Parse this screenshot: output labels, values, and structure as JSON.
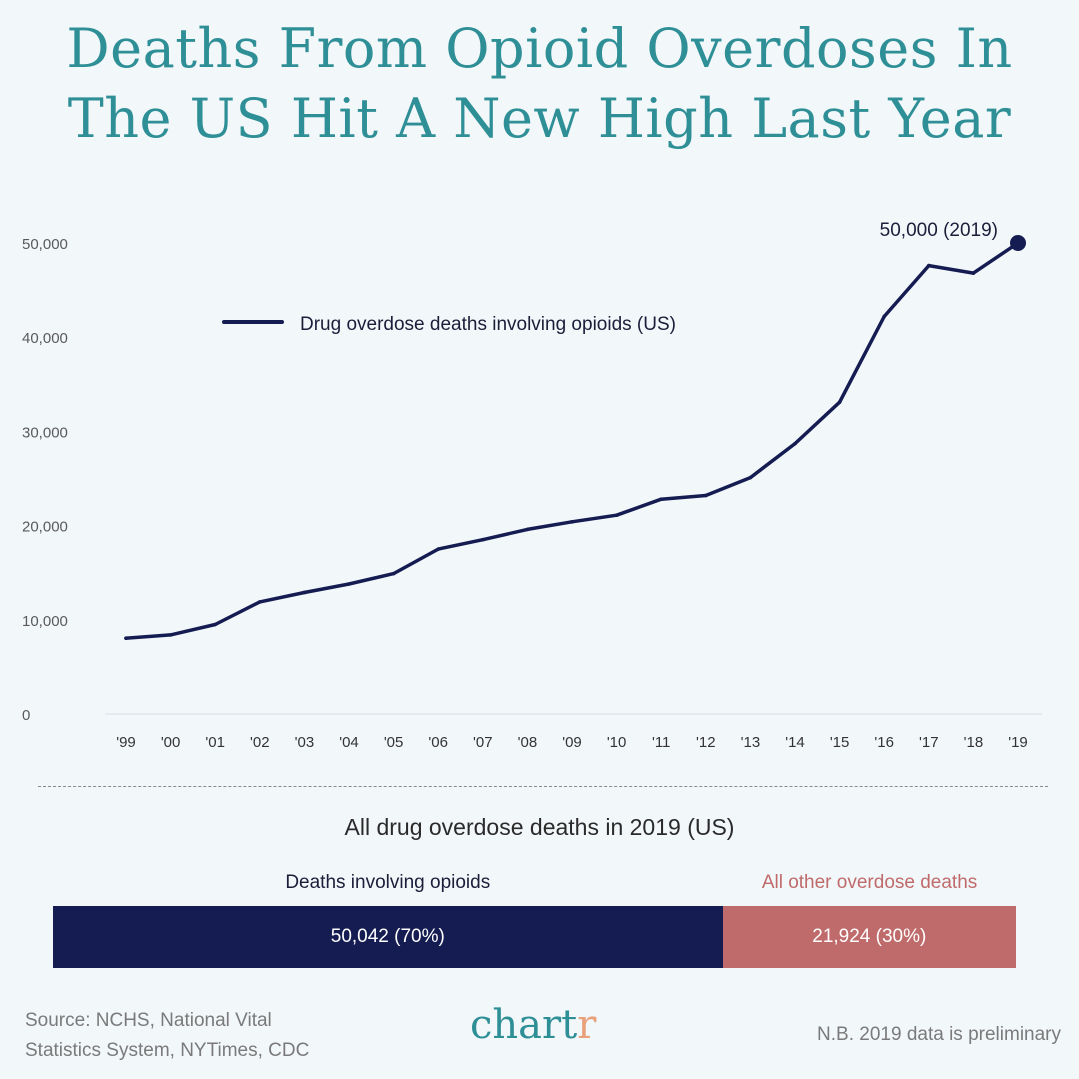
{
  "title": {
    "line1": "Deaths From Opioid Overdoses In",
    "line2": "The US Hit A New High Last Year"
  },
  "colors": {
    "title": "#2f8f96",
    "line": "#141c52",
    "opioid_bar": "#141c52",
    "other_bar": "#c06b6b",
    "other_label": "#c06b6b",
    "logo_accent": "#e8a17a"
  },
  "chart_data": {
    "type": "line",
    "title": "",
    "xlabel": "",
    "ylabel": "",
    "categories": [
      "'99",
      "'00",
      "'01",
      "'02",
      "'03",
      "'04",
      "'05",
      "'06",
      "'07",
      "'08",
      "'09",
      "'10",
      "'11",
      "'12",
      "'13",
      "'14",
      "'15",
      "'16",
      "'17",
      "'18",
      "'19"
    ],
    "series": [
      {
        "name": "Drug overdose deaths involving opioids (US)",
        "values": [
          8050,
          8400,
          9500,
          11900,
          12900,
          13800,
          14900,
          17500,
          18500,
          19600,
          20400,
          21100,
          22800,
          23200,
          25100,
          28700,
          33100,
          42200,
          47600,
          46800,
          50000
        ]
      }
    ],
    "ylim": [
      0,
      50000
    ],
    "yticks": [
      0,
      10000,
      20000,
      30000,
      40000,
      50000
    ],
    "ytick_labels": [
      "0",
      "10,000",
      "20,000",
      "30,000",
      "40,000",
      "50,000"
    ],
    "annotation": {
      "text": "50,000 (2019)"
    },
    "legend_position": "top-left",
    "grid": false
  },
  "breakdown": {
    "title": "All drug overdose deaths in 2019 (US)",
    "segments": [
      {
        "label": "Deaths involving opioids",
        "value": 50042,
        "value_label": "50,042 (70%)"
      },
      {
        "label": "All other overdose deaths",
        "value": 21924,
        "value_label": "21,924 (30%)"
      }
    ]
  },
  "footer": {
    "source_line1": "Source: NCHS, National Vital",
    "source_line2": "Statistics System, NYTimes, CDC",
    "logo_main": "chart",
    "logo_accent": "r",
    "note": "N.B. 2019 data is preliminary"
  }
}
